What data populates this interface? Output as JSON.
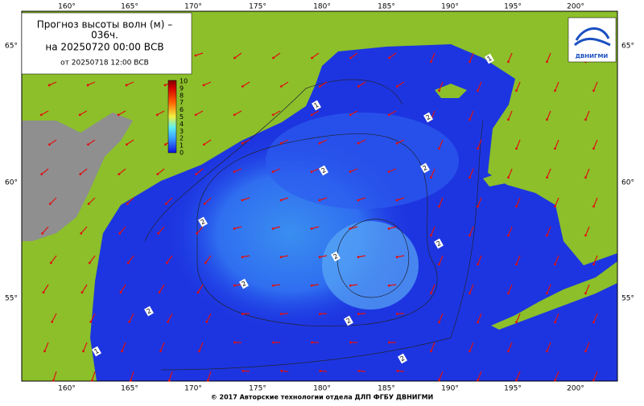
{
  "header": {
    "title_line1": "Прогноз высоты волн (м) –",
    "title_line2": "036ч.",
    "valid": "на 20250720 00:00 ВСВ",
    "issued": "от 20250718 12:00 ВСВ"
  },
  "colorbar": {
    "labels": [
      "10",
      "9",
      "8",
      "7",
      "6",
      "5",
      "4",
      "3",
      "2",
      "1",
      "0"
    ]
  },
  "longitudes": [
    "160°",
    "165°",
    "170°",
    "175°",
    "180°",
    "185°",
    "190°",
    "195°",
    "200°"
  ],
  "latitudes": [
    "65°",
    "60°",
    "55°"
  ],
  "contour_labels": [
    "1",
    "2",
    "2",
    "2",
    "2",
    "2",
    "2",
    "2",
    "2",
    "2",
    "1",
    "1",
    "2"
  ],
  "logo": "ДВНИГМИ",
  "footer": "© 2017 Авторские технологии отдела ДЛП ФГБУ ДВНИГМИ"
}
